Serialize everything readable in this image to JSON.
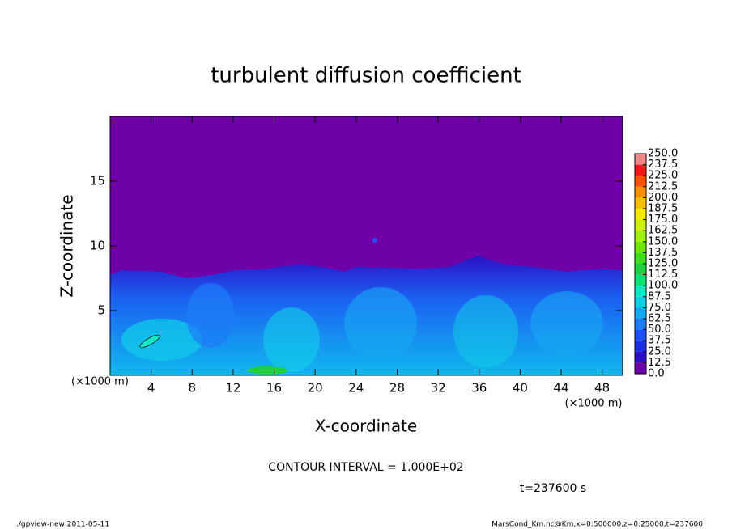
{
  "chart_data": {
    "type": "contour",
    "title": "turbulent diffusion coefficient",
    "xlabel": "X-coordinate",
    "ylabel": "Z-coordinate",
    "xunit": "(×1000 m)",
    "yunit": "(×1000 m)",
    "xlim": [
      0,
      50
    ],
    "ylim": [
      0,
      20
    ],
    "xticks": [
      4,
      8,
      12,
      16,
      20,
      24,
      28,
      32,
      36,
      40,
      44,
      48
    ],
    "yticks": [
      5,
      10,
      15
    ],
    "colorbar": {
      "levels": [
        {
          "value": 0,
          "label": "0.0"
        },
        {
          "value": 12.5,
          "label": "12.5"
        },
        {
          "value": 25,
          "label": "25.0"
        },
        {
          "value": 37.5,
          "label": "37.5"
        },
        {
          "value": 50,
          "label": "50.0"
        },
        {
          "value": 62.5,
          "label": "62.5"
        },
        {
          "value": 75,
          "label": "75.0"
        },
        {
          "value": 87.5,
          "label": "87.5"
        },
        {
          "value": 100,
          "label": "100.0"
        },
        {
          "value": 112.5,
          "label": "112.5"
        },
        {
          "value": 125,
          "label": "125.0"
        },
        {
          "value": 137.5,
          "label": "137.5"
        },
        {
          "value": 150,
          "label": "150.0"
        },
        {
          "value": 162.5,
          "label": "162.5"
        },
        {
          "value": 175,
          "label": "175.0"
        },
        {
          "value": 187.5,
          "label": "187.5"
        },
        {
          "value": 200,
          "label": "200.0"
        },
        {
          "value": 212.5,
          "label": "212.5"
        },
        {
          "value": 225,
          "label": "225.0"
        },
        {
          "value": 237.5,
          "label": "237.5"
        },
        {
          "value": 250,
          "label": "250.0"
        }
      ],
      "colors": [
        "#6e00a8",
        "#2c10c4",
        "#1a30e0",
        "#1c50f2",
        "#1c7cf6",
        "#18a8f2",
        "#10cfe8",
        "#10e8c4",
        "#10e078",
        "#20d040",
        "#40e020",
        "#70e810",
        "#a0f010",
        "#d0f010",
        "#f8e800",
        "#f8c000",
        "#f89000",
        "#f85000",
        "#f01818",
        "#f08888"
      ]
    },
    "contour_interval": "CONTOUR INTERVAL = 1.000E+02",
    "time_label": "t=237600 s",
    "footer_left": "./gpview-new   2011-05-11",
    "footer_right": "MarsCond_Km.nc@Km,x=0:500000,z=0:25000,t=237600"
  }
}
